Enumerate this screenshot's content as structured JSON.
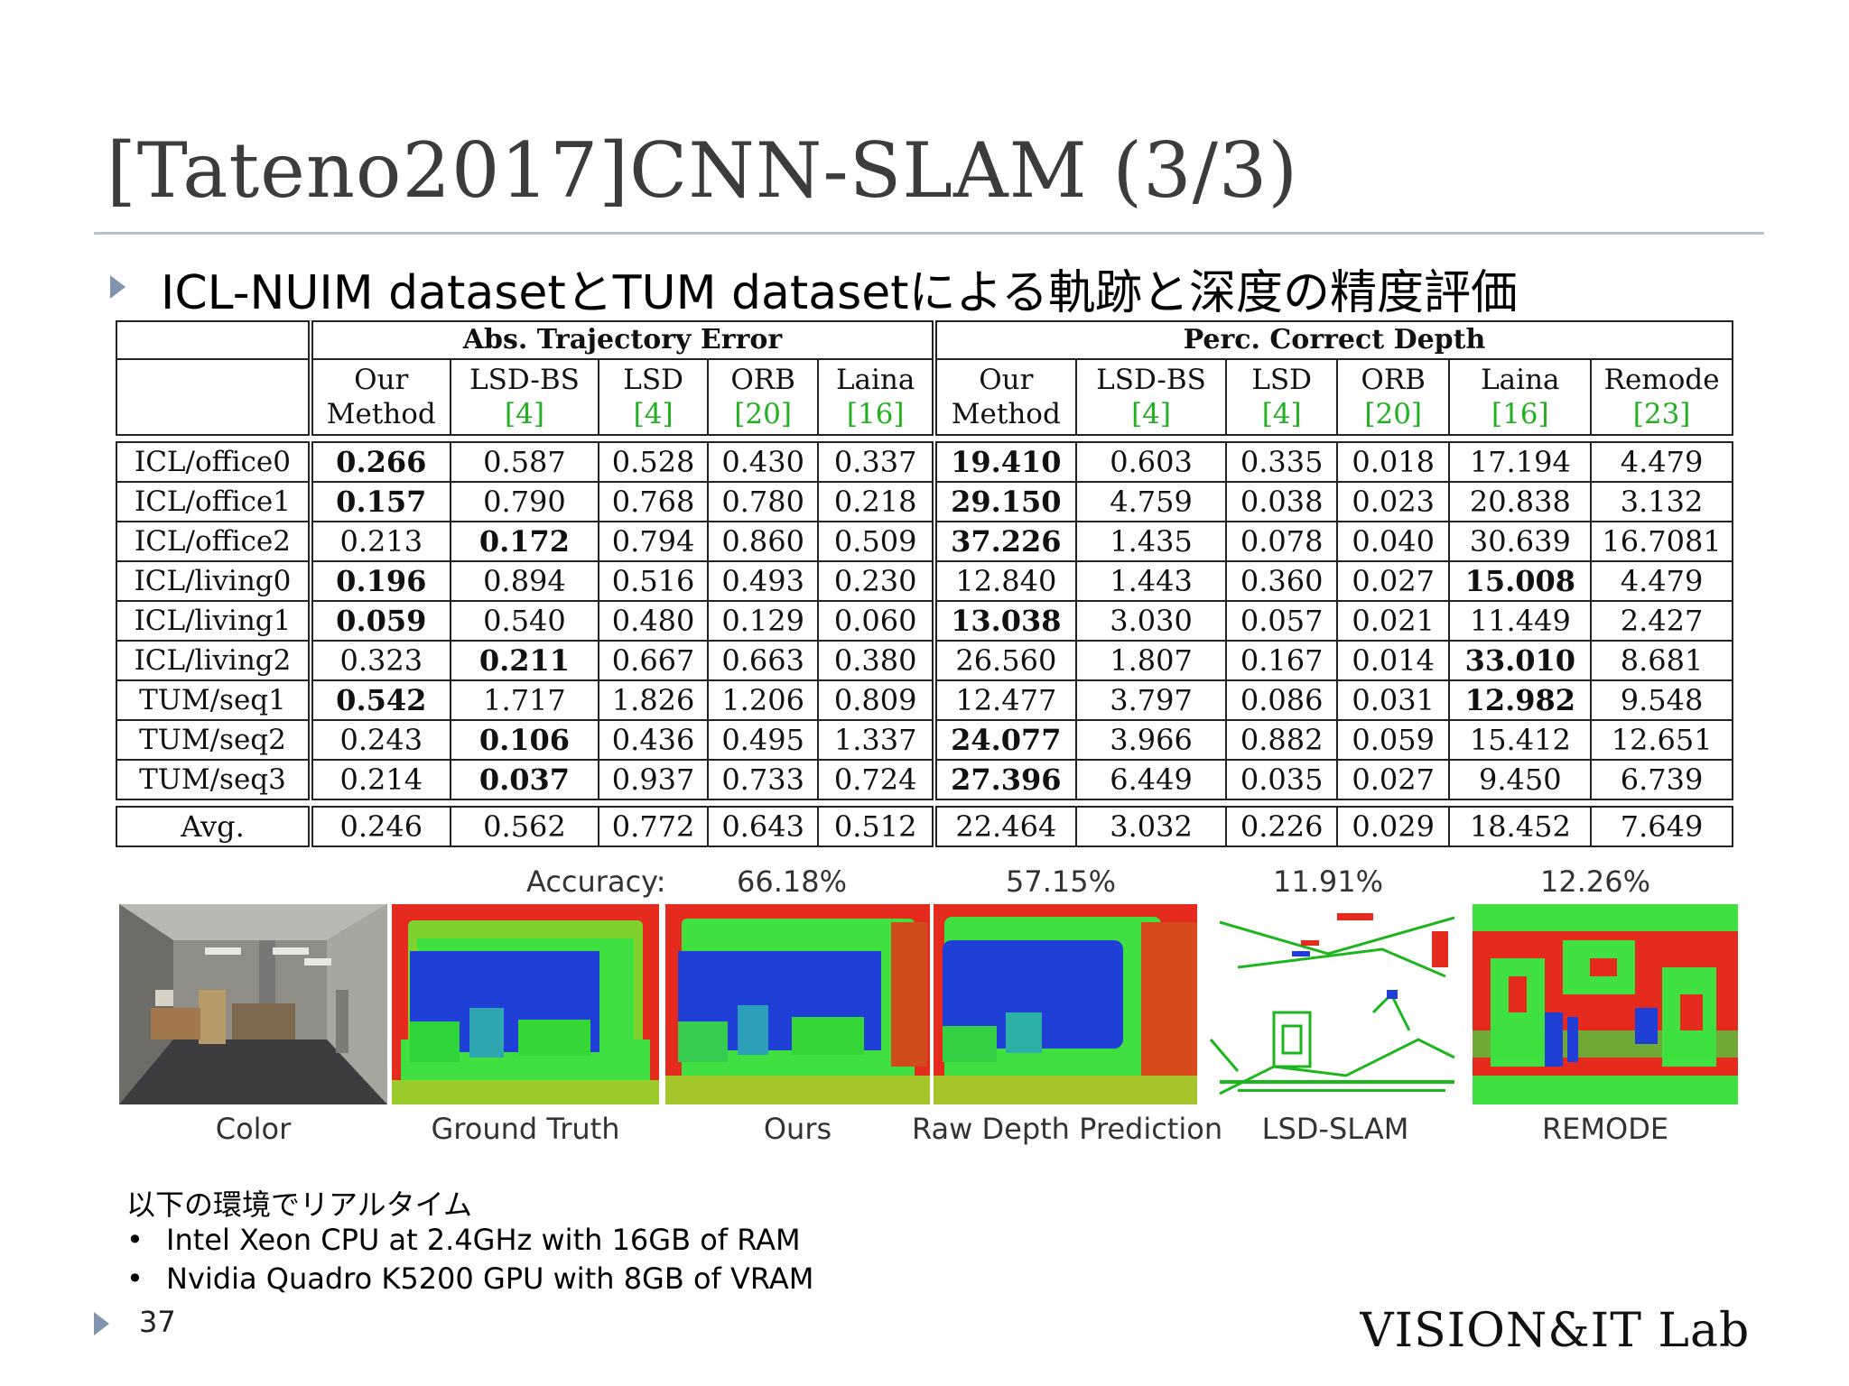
{
  "slide": {
    "title": "[Tateno2017]CNN-SLAM (3/3)",
    "subtitle": "ICL-NUIM datasetとTUM datasetによる軌跡と深度の精度評価",
    "page_number": "37",
    "logo_text": "VISION&IT Lab"
  },
  "table": {
    "group_left": "Abs. Trajectory Error",
    "group_right": "Perc. Correct Depth",
    "left_cols": [
      {
        "name": "Our",
        "sub": "Method",
        "ref": ""
      },
      {
        "name": "LSD-BS",
        "sub": "",
        "ref": "[4]"
      },
      {
        "name": "LSD",
        "sub": "",
        "ref": "[4]"
      },
      {
        "name": "ORB",
        "sub": "",
        "ref": "[20]"
      },
      {
        "name": "Laina",
        "sub": "",
        "ref": "[16]"
      }
    ],
    "right_cols": [
      {
        "name": "Our",
        "sub": "Method",
        "ref": ""
      },
      {
        "name": "LSD-BS",
        "sub": "",
        "ref": "[4]"
      },
      {
        "name": "LSD",
        "sub": "",
        "ref": "[4]"
      },
      {
        "name": "ORB",
        "sub": "",
        "ref": "[20]"
      },
      {
        "name": "Laina",
        "sub": "",
        "ref": "[16]"
      },
      {
        "name": "Remode",
        "sub": "",
        "ref": "[23]"
      }
    ],
    "rows": [
      {
        "label": "ICL/office0",
        "ate": [
          "0.266",
          "0.587",
          "0.528",
          "0.430",
          "0.337"
        ],
        "ate_bold": 0,
        "pcd": [
          "19.410",
          "0.603",
          "0.335",
          "0.018",
          "17.194",
          "4.479"
        ],
        "pcd_bold": 0
      },
      {
        "label": "ICL/office1",
        "ate": [
          "0.157",
          "0.790",
          "0.768",
          "0.780",
          "0.218"
        ],
        "ate_bold": 0,
        "pcd": [
          "29.150",
          "4.759",
          "0.038",
          "0.023",
          "20.838",
          "3.132"
        ],
        "pcd_bold": 0
      },
      {
        "label": "ICL/office2",
        "ate": [
          "0.213",
          "0.172",
          "0.794",
          "0.860",
          "0.509"
        ],
        "ate_bold": 1,
        "pcd": [
          "37.226",
          "1.435",
          "0.078",
          "0.040",
          "30.639",
          "16.7081"
        ],
        "pcd_bold": 0
      },
      {
        "label": "ICL/living0",
        "ate": [
          "0.196",
          "0.894",
          "0.516",
          "0.493",
          "0.230"
        ],
        "ate_bold": 0,
        "pcd": [
          "12.840",
          "1.443",
          "0.360",
          "0.027",
          "15.008",
          "4.479"
        ],
        "pcd_bold": 4
      },
      {
        "label": "ICL/living1",
        "ate": [
          "0.059",
          "0.540",
          "0.480",
          "0.129",
          "0.060"
        ],
        "ate_bold": 0,
        "pcd": [
          "13.038",
          "3.030",
          "0.057",
          "0.021",
          "11.449",
          "2.427"
        ],
        "pcd_bold": 0
      },
      {
        "label": "ICL/living2",
        "ate": [
          "0.323",
          "0.211",
          "0.667",
          "0.663",
          "0.380"
        ],
        "ate_bold": 1,
        "pcd": [
          "26.560",
          "1.807",
          "0.167",
          "0.014",
          "33.010",
          "8.681"
        ],
        "pcd_bold": 4
      },
      {
        "label": "TUM/seq1",
        "ate": [
          "0.542",
          "1.717",
          "1.826",
          "1.206",
          "0.809"
        ],
        "ate_bold": 0,
        "pcd": [
          "12.477",
          "3.797",
          "0.086",
          "0.031",
          "12.982",
          "9.548"
        ],
        "pcd_bold": 4
      },
      {
        "label": "TUM/seq2",
        "ate": [
          "0.243",
          "0.106",
          "0.436",
          "0.495",
          "1.337"
        ],
        "ate_bold": 1,
        "pcd": [
          "24.077",
          "3.966",
          "0.882",
          "0.059",
          "15.412",
          "12.651"
        ],
        "pcd_bold": 0
      },
      {
        "label": "TUM/seq3",
        "ate": [
          "0.214",
          "0.037",
          "0.937",
          "0.733",
          "0.724"
        ],
        "ate_bold": 1,
        "pcd": [
          "27.396",
          "6.449",
          "0.035",
          "0.027",
          "9.450",
          "6.739"
        ],
        "pcd_bold": 0
      }
    ],
    "avg": {
      "label": "Avg.",
      "ate": [
        "0.246",
        "0.562",
        "0.772",
        "0.643",
        "0.512"
      ],
      "pcd": [
        "22.464",
        "3.032",
        "0.226",
        "0.029",
        "18.452",
        "7.649"
      ]
    }
  },
  "figure": {
    "accuracy_label": "Accuracy:",
    "accuracies": [
      "66.18%",
      "57.15%",
      "11.91%",
      "12.26%"
    ],
    "captions": [
      "Color",
      "Ground Truth",
      "Ours",
      "Raw Depth Prediction",
      "LSD-SLAM",
      "REMODE"
    ],
    "colors": {
      "near": "#1f3fd6",
      "mid": "#3fe03f",
      "far": "#e42b1e"
    }
  },
  "environment": {
    "heading": "以下の環境でリアルタイム",
    "bullet": "•",
    "items": [
      "Intel Xeon CPU at 2.4GHz with 16GB of RAM",
      "Nvidia Quadro K5200 GPU with 8GB of VRAM"
    ]
  }
}
